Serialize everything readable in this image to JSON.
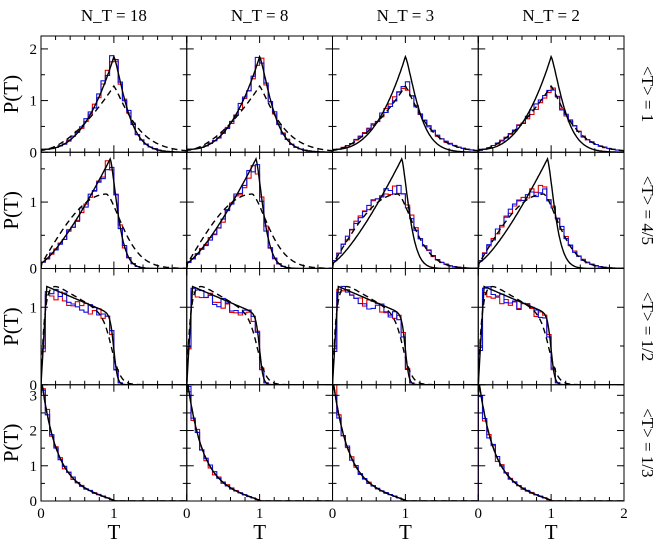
{
  "chart_data": {
    "type": "line",
    "layout": "grid 4 rows x 4 columns, shared axes",
    "column_titles": [
      "N_T = 18",
      "N_T = 8",
      "N_T = 3",
      "N_T = 2"
    ],
    "row_titles": [
      "<T> = 1",
      "<T> = 4/5",
      "<T> = 1/2",
      "<T> = 1/3"
    ],
    "ylabel": "P(T)",
    "xlabel": "T",
    "xlim": [
      0,
      2
    ],
    "x_ticks": [
      "0",
      "1",
      "2"
    ],
    "x_ticks_first_column": [
      "0",
      "1"
    ],
    "row_ylims": [
      [
        0,
        2.25
      ],
      [
        0,
        1.75
      ],
      [
        0,
        1.5
      ],
      [
        0,
        3.3
      ]
    ],
    "row_yticks": [
      [
        "0",
        "1",
        "2"
      ],
      [
        "0",
        "1"
      ],
      [
        "0",
        "1"
      ],
      [
        "0",
        "1",
        "2",
        "3"
      ]
    ],
    "series_colors": {
      "black_solid": "#000000",
      "black_dashed": "#000000",
      "red_histogram": "#e00000",
      "blue_histogram": "#1010e0"
    },
    "series_styles": [
      "black solid curve",
      "black dashed curve",
      "red step histogram",
      "blue step histogram"
    ],
    "panels": [
      {
        "row": 0,
        "col": 0,
        "solid_peak": 1.85,
        "dashed_peak": 1.28,
        "hist_peak": 1.9
      },
      {
        "row": 0,
        "col": 1,
        "solid_peak": 1.85,
        "dashed_peak": 1.28,
        "hist_peak": 1.85
      },
      {
        "row": 0,
        "col": 2,
        "solid_peak": 1.85,
        "dashed_peak": 1.28,
        "hist_peak": 1.35
      },
      {
        "row": 0,
        "col": 3,
        "solid_peak": 1.85,
        "dashed_peak": 1.28,
        "hist_peak": 1.28
      },
      {
        "row": 1,
        "col": 0,
        "solid_peak": 1.65,
        "dashed_peak": 1.12,
        "hist_peak": 1.65
      },
      {
        "row": 1,
        "col": 1,
        "solid_peak": 1.65,
        "dashed_peak": 1.12,
        "hist_peak": 1.6
      },
      {
        "row": 1,
        "col": 2,
        "solid_peak": 1.65,
        "dashed_peak": 1.12,
        "hist_peak": 1.2
      },
      {
        "row": 1,
        "col": 3,
        "solid_peak": 1.65,
        "dashed_peak": 1.12,
        "hist_peak": 1.18
      },
      {
        "row": 2,
        "col": 0,
        "solid_peak": 1.3,
        "dashed_peak": 1.4,
        "hist_peak": 1.25
      },
      {
        "row": 2,
        "col": 1,
        "solid_peak": 1.3,
        "dashed_peak": 1.4,
        "hist_peak": 1.25
      },
      {
        "row": 2,
        "col": 2,
        "solid_peak": 1.3,
        "dashed_peak": 1.4,
        "hist_peak": 1.25
      },
      {
        "row": 2,
        "col": 3,
        "solid_peak": 1.3,
        "dashed_peak": 1.4,
        "hist_peak": 1.25
      },
      {
        "row": 3,
        "col": 0,
        "solid_peak": 3.0,
        "dashed_peak": 3.0,
        "hist_peak": 3.0
      },
      {
        "row": 3,
        "col": 1,
        "solid_peak": 3.0,
        "dashed_peak": 3.0,
        "hist_peak": 3.0
      },
      {
        "row": 3,
        "col": 2,
        "solid_peak": 3.0,
        "dashed_peak": 3.0,
        "hist_peak": 3.0
      },
      {
        "row": 3,
        "col": 3,
        "solid_peak": 3.0,
        "dashed_peak": 3.0,
        "hist_peak": 3.0
      }
    ]
  }
}
